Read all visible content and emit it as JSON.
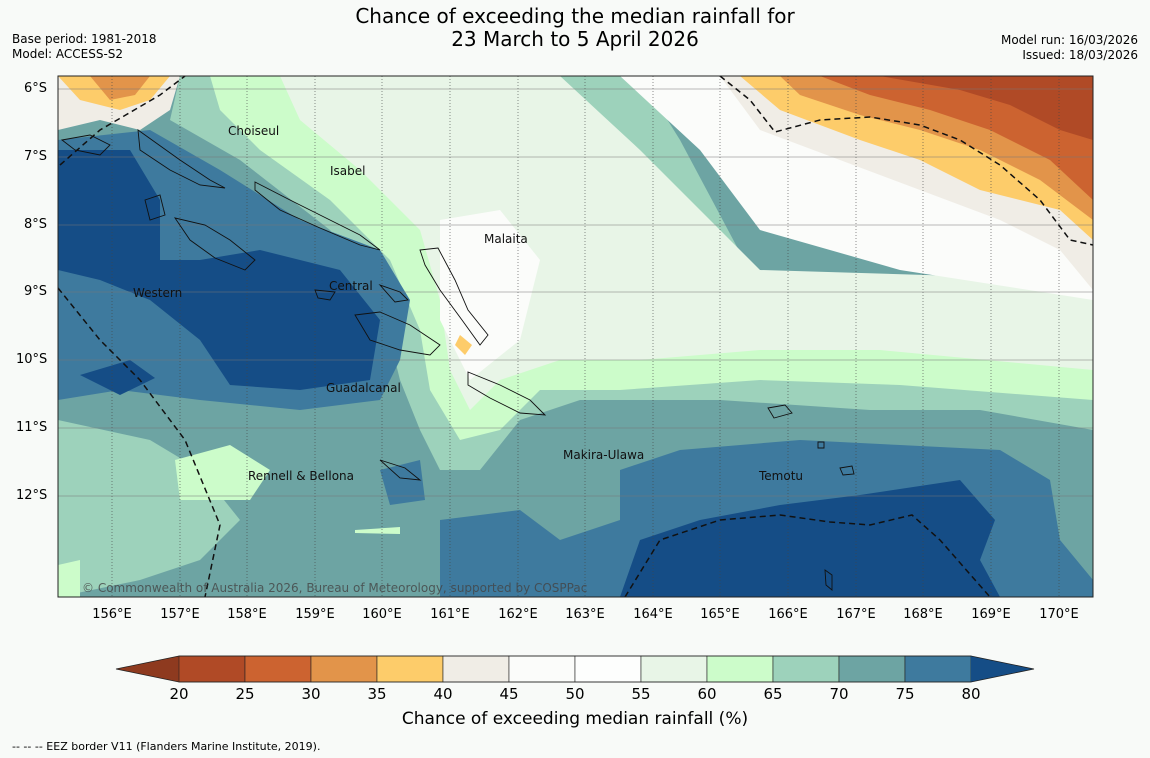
{
  "header": {
    "title_line1": "Chance of exceeding the median rainfall for",
    "title_line2": "23 March to 5 April 2026",
    "base_period": "Base period: 1981-2018",
    "model": "Model: ACCESS-S2",
    "model_run": "Model run: 16/03/2026",
    "issued": "Issued: 18/03/2026"
  },
  "map": {
    "lat_labels": [
      "6°S",
      "7°S",
      "8°S",
      "9°S",
      "10°S",
      "11°S",
      "12°S"
    ],
    "lon_labels": [
      "156°E",
      "157°E",
      "158°E",
      "159°E",
      "160°E",
      "161°E",
      "162°E",
      "163°E",
      "164°E",
      "165°E",
      "166°E",
      "167°E",
      "168°E",
      "169°E",
      "170°E"
    ],
    "region_labels": [
      "Choiseul",
      "Isabel",
      "Malaita",
      "Western",
      "Central",
      "Guadalcanal",
      "Makira-Ulawa",
      "Rennell & Bellona",
      "Temotu"
    ],
    "copyright": "© Commonwealth of Australia 2026, Bureau of Meteorology, supported by COSPPac"
  },
  "colorbar": {
    "ticks": [
      "20",
      "25",
      "30",
      "35",
      "40",
      "45",
      "50",
      "55",
      "60",
      "65",
      "70",
      "75",
      "80"
    ],
    "colors": [
      "#8e3a1f",
      "#b04a26",
      "#cc6330",
      "#e2944a",
      "#fdcc6a",
      "#f0ede6",
      "#fbfcfa",
      "#fdfefd",
      "#e8f5e7",
      "#ccfcca",
      "#9dd2bb",
      "#6da4a3",
      "#3e7a9e",
      "#154d86"
    ],
    "title": "Chance of exceeding median rainfall (%)"
  },
  "footnote": "--  --  -- EEZ border V11 (Flanders Marine Institute, 2019)."
}
